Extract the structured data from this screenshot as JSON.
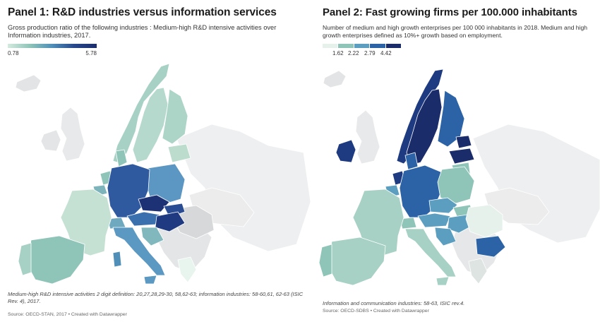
{
  "colors": {
    "no_data": "#e9eaeb",
    "grey_out": "#d8d9db",
    "panel1_scale": [
      "#d4eadf",
      "#8fc4b8",
      "#4f8fb8",
      "#27488c",
      "#1b2c6b"
    ],
    "panel2_scale": [
      "#e5f1ea",
      "#8fc4b8",
      "#5b9ec0",
      "#2c63a6",
      "#1b2c6b"
    ]
  },
  "panel1": {
    "title": "Panel 1: R&D industries versus information services",
    "subtitle": "Gross production ratio of the following industries : Medium-high R&D intensive activities over Information industries, 2017.",
    "legend": {
      "min": "0.78",
      "max": "5.78"
    },
    "notes": "Medium-high R&D intensive activities 2 digit definition: 20,27,28,29-30, 58,62-63; information industries: 58-60,61, 62-63 (ISIC Rev. 4), 2017.",
    "source": "Source: OECD-STAN, 2017 • Created with Datawrapper"
  },
  "panel2": {
    "title": "Panel 2: Fast growing firms per 100.000 inhabitants",
    "subtitle": "Number of medium and high growth enterprises per 100 000 inhabitants in 2018. Medium and high growth enterprises defined as 10%+ growth based on employment.",
    "legend": {
      "breaks": [
        "1.62",
        "2.22",
        "2.79",
        "4.42"
      ]
    },
    "notes": "Information and communication industries: 58-63, ISIC rev.4.",
    "source": "Source: OECD-SDBS • Created with Datawrapper"
  }
}
